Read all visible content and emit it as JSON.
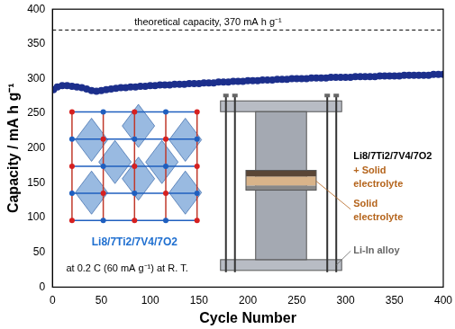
{
  "chart_data": {
    "type": "line",
    "x_label": "Cycle Number",
    "y_label": "Capacity / mA h g⁻¹",
    "xlim": [
      0,
      400
    ],
    "xticks": [
      0,
      50,
      100,
      150,
      200,
      250,
      300,
      350,
      400
    ],
    "ylim": [
      0,
      400
    ],
    "yticks": [
      0,
      50,
      100,
      150,
      200,
      250,
      300,
      350,
      400
    ],
    "grid": false,
    "x": [
      1,
      5,
      10,
      15,
      20,
      25,
      30,
      35,
      40,
      45,
      50,
      55,
      60,
      65,
      70,
      75,
      80,
      85,
      90,
      95,
      100,
      105,
      110,
      115,
      120,
      125,
      130,
      135,
      140,
      145,
      150,
      155,
      160,
      165,
      170,
      175,
      180,
      185,
      190,
      195,
      200,
      205,
      210,
      215,
      220,
      225,
      230,
      235,
      240,
      245,
      250,
      255,
      260,
      265,
      270,
      275,
      280,
      285,
      290,
      295,
      300,
      305,
      310,
      315,
      320,
      325,
      330,
      335,
      340,
      345,
      350,
      355,
      360,
      365,
      370,
      375,
      380,
      385,
      390,
      395,
      400
    ],
    "series": [
      {
        "name": "Li8/7Ti2/7V4/7O2",
        "color": "#1c2f8c",
        "marker": "circle",
        "values": [
          284,
          288,
          290,
          290,
          289,
          288,
          287,
          285,
          283,
          282,
          283,
          284,
          285,
          286,
          287,
          287,
          288,
          288,
          289,
          289,
          290,
          290,
          291,
          291,
          291,
          292,
          292,
          292,
          293,
          293,
          293,
          294,
          294,
          294,
          295,
          295,
          295,
          296,
          296,
          296,
          297,
          297,
          297,
          298,
          298,
          298,
          299,
          299,
          299,
          300,
          300,
          300,
          300,
          301,
          301,
          301,
          301,
          302,
          302,
          302,
          302,
          302,
          303,
          303,
          303,
          303,
          303,
          304,
          304,
          304,
          304,
          304,
          305,
          305,
          305,
          305,
          305,
          305,
          306,
          306,
          306
        ]
      }
    ],
    "reference_lines": [
      {
        "value": 370,
        "label": "theoretical capacity, 370 mA h g⁻¹",
        "line_style": "dashed",
        "color": "#000000"
      }
    ],
    "annotations": {
      "condition": "at 0.2 C (60 mA g⁻¹) at R. T.",
      "structure_label": "Li8/7Ti2/7V4/7O2",
      "cell_labels": [
        "Li8/7Ti2/7V4/7O2",
        "+ Solid",
        "electrolyte",
        "Solid",
        "electrolyte",
        "Li-In alloy"
      ]
    },
    "legend": false
  }
}
